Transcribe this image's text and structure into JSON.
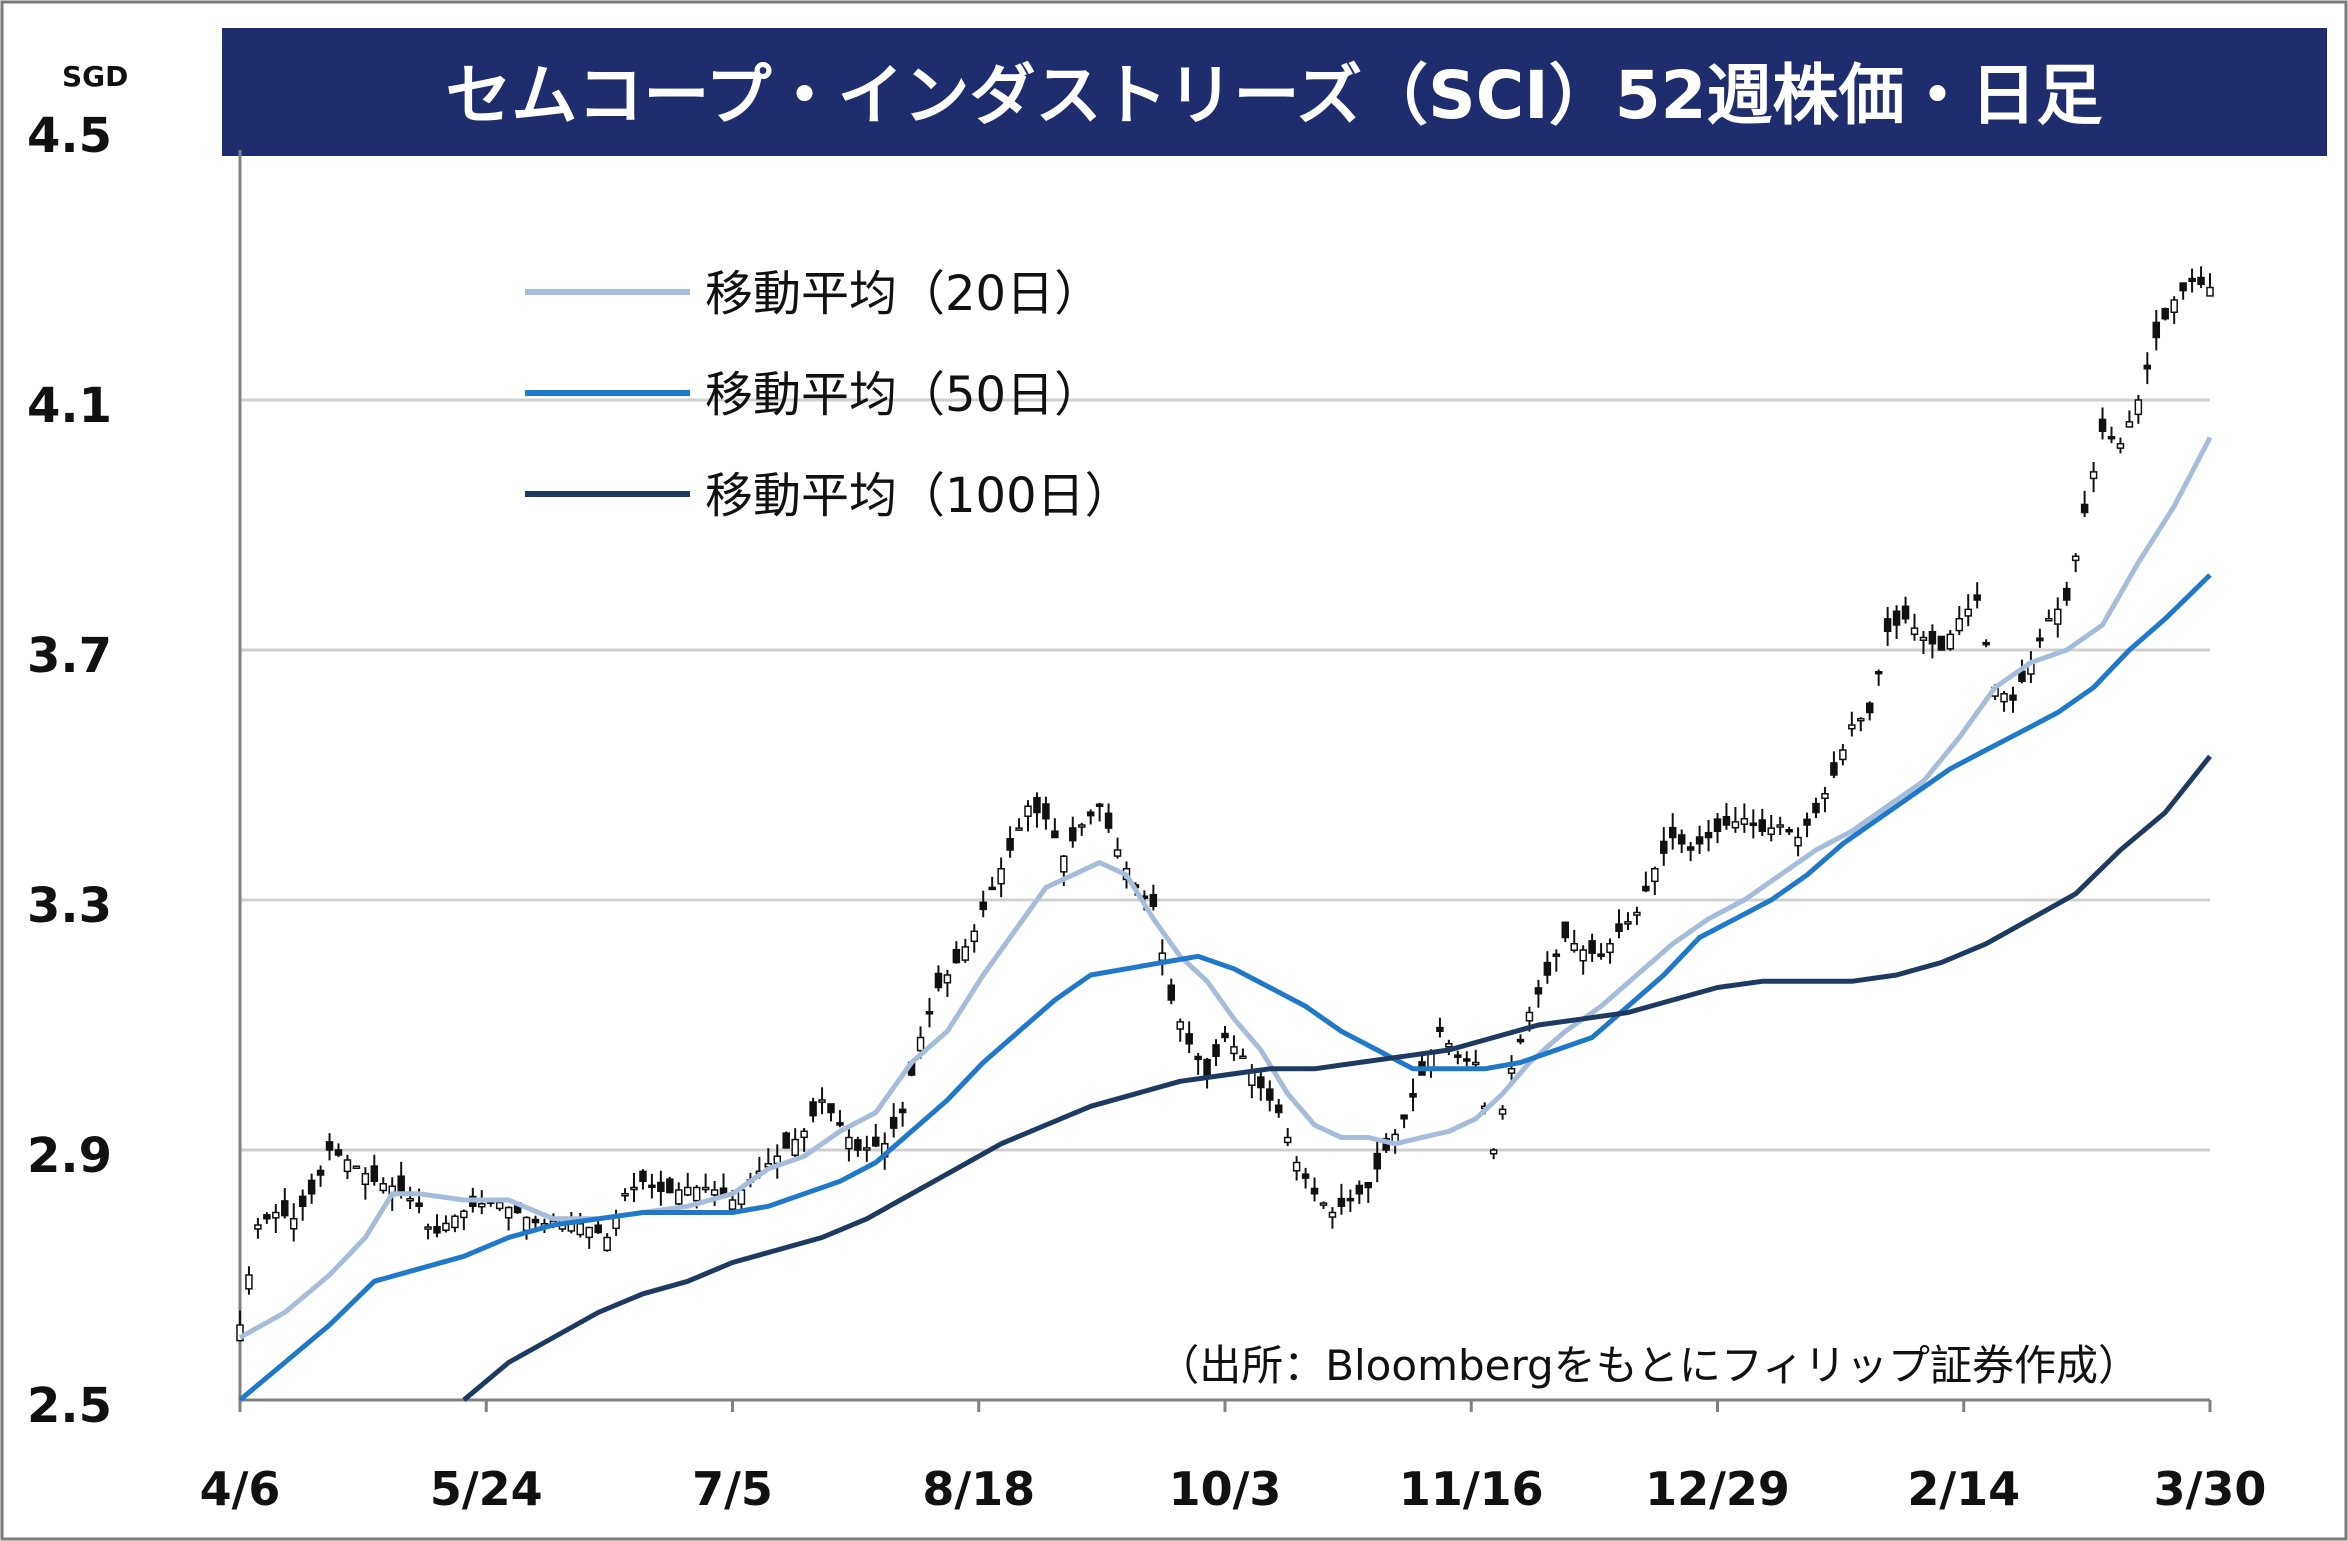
{
  "chart_data": {
    "type": "line",
    "title": "セムコープ・インダストリーズ（SCI）52週株価・日足",
    "unit": "SGD",
    "source": "（出所：Bloombergをもとにフィリップ証券作成）",
    "ylim": [
      2.5,
      4.5
    ],
    "yticks": [
      "2.5",
      "2.9",
      "3.3",
      "3.7",
      "4.1",
      "4.5"
    ],
    "xticks": [
      "4/6",
      "5/24",
      "7/5",
      "8/18",
      "10/3",
      "11/16",
      "12/29",
      "2/14",
      "3/30"
    ],
    "grid": true,
    "legend_position": "top-left",
    "candles": {
      "points": [
        [
          0,
          2.62
        ],
        [
          4,
          2.78
        ],
        [
          8,
          2.8
        ],
        [
          12,
          2.79
        ],
        [
          17,
          2.84
        ],
        [
          20,
          2.9
        ],
        [
          25,
          2.88
        ],
        [
          30,
          2.85
        ],
        [
          35,
          2.84
        ],
        [
          40,
          2.81
        ],
        [
          43,
          2.76
        ],
        [
          47,
          2.79
        ],
        [
          52,
          2.81
        ],
        [
          57,
          2.82
        ],
        [
          62,
          2.8
        ],
        [
          67,
          2.78
        ],
        [
          72,
          2.79
        ],
        [
          77,
          2.78
        ],
        [
          82,
          2.76
        ],
        [
          86,
          2.83
        ],
        [
          90,
          2.85
        ],
        [
          95,
          2.83
        ],
        [
          100,
          2.84
        ],
        [
          105,
          2.84
        ],
        [
          110,
          2.82
        ],
        [
          115,
          2.86
        ],
        [
          120,
          2.89
        ],
        [
          126,
          2.93
        ],
        [
          130,
          2.98
        ],
        [
          134,
          2.94
        ],
        [
          138,
          2.9
        ],
        [
          144,
          2.91
        ],
        [
          148,
          2.96
        ],
        [
          152,
          3.08
        ],
        [
          156,
          3.16
        ],
        [
          160,
          3.2
        ],
        [
          164,
          3.25
        ],
        [
          168,
          3.32
        ],
        [
          172,
          3.38
        ],
        [
          176,
          3.45
        ],
        [
          180,
          3.43
        ],
        [
          184,
          3.37
        ],
        [
          188,
          3.42
        ],
        [
          192,
          3.45
        ],
        [
          196,
          3.38
        ],
        [
          200,
          3.32
        ],
        [
          204,
          3.29
        ],
        [
          208,
          3.14
        ],
        [
          212,
          3.07
        ],
        [
          216,
          3.02
        ],
        [
          220,
          3.08
        ],
        [
          224,
          3.05
        ],
        [
          228,
          3.0
        ],
        [
          232,
          2.96
        ],
        [
          236,
          2.88
        ],
        [
          240,
          2.83
        ],
        [
          244,
          2.8
        ],
        [
          248,
          2.82
        ],
        [
          252,
          2.84
        ],
        [
          256,
          2.9
        ],
        [
          260,
          2.95
        ],
        [
          264,
          3.02
        ],
        [
          268,
          3.09
        ],
        [
          272,
          3.05
        ],
        [
          276,
          3.04
        ],
        [
          280,
          2.9
        ],
        [
          284,
          3.03
        ],
        [
          288,
          3.12
        ],
        [
          292,
          3.18
        ],
        [
          296,
          3.24
        ],
        [
          300,
          3.22
        ],
        [
          304,
          3.21
        ],
        [
          308,
          3.25
        ],
        [
          312,
          3.28
        ],
        [
          316,
          3.35
        ],
        [
          320,
          3.4
        ],
        [
          324,
          3.38
        ],
        [
          328,
          3.4
        ],
        [
          332,
          3.42
        ],
        [
          336,
          3.43
        ],
        [
          340,
          3.41
        ],
        [
          344,
          3.42
        ],
        [
          348,
          3.4
        ],
        [
          352,
          3.44
        ],
        [
          356,
          3.5
        ],
        [
          360,
          3.58
        ],
        [
          364,
          3.6
        ],
        [
          368,
          3.73
        ],
        [
          372,
          3.75
        ],
        [
          376,
          3.72
        ],
        [
          380,
          3.7
        ],
        [
          384,
          3.75
        ],
        [
          388,
          3.78
        ],
        [
          392,
          3.64
        ],
        [
          396,
          3.62
        ],
        [
          400,
          3.68
        ],
        [
          404,
          3.75
        ],
        [
          408,
          3.78
        ],
        [
          412,
          3.92
        ],
        [
          416,
          4.05
        ],
        [
          420,
          4.03
        ],
        [
          424,
          4.1
        ],
        [
          428,
          4.2
        ],
        [
          432,
          4.26
        ],
        [
          436,
          4.29
        ],
        [
          440,
          4.28
        ]
      ]
    },
    "series": [
      {
        "name": "移動平均（20日）",
        "color": "#a6bcdb",
        "values": [
          [
            0,
            2.6
          ],
          [
            10,
            2.64
          ],
          [
            20,
            2.7
          ],
          [
            28,
            2.76
          ],
          [
            34,
            2.83
          ],
          [
            40,
            2.83
          ],
          [
            50,
            2.82
          ],
          [
            60,
            2.82
          ],
          [
            70,
            2.79
          ],
          [
            80,
            2.79
          ],
          [
            90,
            2.8
          ],
          [
            100,
            2.81
          ],
          [
            110,
            2.83
          ],
          [
            118,
            2.87
          ],
          [
            126,
            2.89
          ],
          [
            134,
            2.93
          ],
          [
            142,
            2.96
          ],
          [
            150,
            3.04
          ],
          [
            158,
            3.09
          ],
          [
            166,
            3.18
          ],
          [
            174,
            3.26
          ],
          [
            180,
            3.32
          ],
          [
            186,
            3.34
          ],
          [
            192,
            3.36
          ],
          [
            198,
            3.34
          ],
          [
            204,
            3.27
          ],
          [
            210,
            3.21
          ],
          [
            216,
            3.17
          ],
          [
            222,
            3.11
          ],
          [
            228,
            3.06
          ],
          [
            234,
            2.99
          ],
          [
            240,
            2.94
          ],
          [
            246,
            2.92
          ],
          [
            252,
            2.92
          ],
          [
            258,
            2.91
          ],
          [
            264,
            2.92
          ],
          [
            270,
            2.93
          ],
          [
            276,
            2.95
          ],
          [
            282,
            2.99
          ],
          [
            288,
            3.04
          ],
          [
            296,
            3.09
          ],
          [
            304,
            3.13
          ],
          [
            312,
            3.18
          ],
          [
            320,
            3.23
          ],
          [
            328,
            3.27
          ],
          [
            336,
            3.3
          ],
          [
            344,
            3.34
          ],
          [
            352,
            3.38
          ],
          [
            360,
            3.41
          ],
          [
            368,
            3.45
          ],
          [
            376,
            3.49
          ],
          [
            384,
            3.56
          ],
          [
            392,
            3.64
          ],
          [
            400,
            3.68
          ],
          [
            408,
            3.7
          ],
          [
            416,
            3.74
          ],
          [
            424,
            3.84
          ],
          [
            432,
            3.93
          ],
          [
            440,
            4.04
          ]
        ]
      },
      {
        "name": "移動平均（50日）",
        "color": "#1f78c8",
        "values": [
          [
            0,
            2.5
          ],
          [
            10,
            2.56
          ],
          [
            20,
            2.62
          ],
          [
            30,
            2.69
          ],
          [
            40,
            2.71
          ],
          [
            50,
            2.73
          ],
          [
            60,
            2.76
          ],
          [
            70,
            2.78
          ],
          [
            80,
            2.79
          ],
          [
            90,
            2.8
          ],
          [
            100,
            2.8
          ],
          [
            110,
            2.8
          ],
          [
            118,
            2.81
          ],
          [
            126,
            2.83
          ],
          [
            134,
            2.85
          ],
          [
            142,
            2.88
          ],
          [
            150,
            2.93
          ],
          [
            158,
            2.98
          ],
          [
            166,
            3.04
          ],
          [
            174,
            3.09
          ],
          [
            182,
            3.14
          ],
          [
            190,
            3.18
          ],
          [
            198,
            3.19
          ],
          [
            206,
            3.2
          ],
          [
            214,
            3.21
          ],
          [
            222,
            3.19
          ],
          [
            230,
            3.16
          ],
          [
            238,
            3.13
          ],
          [
            246,
            3.09
          ],
          [
            254,
            3.06
          ],
          [
            262,
            3.03
          ],
          [
            270,
            3.03
          ],
          [
            278,
            3.03
          ],
          [
            286,
            3.04
          ],
          [
            294,
            3.06
          ],
          [
            302,
            3.08
          ],
          [
            310,
            3.13
          ],
          [
            318,
            3.18
          ],
          [
            326,
            3.24
          ],
          [
            334,
            3.27
          ],
          [
            342,
            3.3
          ],
          [
            350,
            3.34
          ],
          [
            358,
            3.39
          ],
          [
            366,
            3.43
          ],
          [
            374,
            3.47
          ],
          [
            382,
            3.51
          ],
          [
            390,
            3.54
          ],
          [
            398,
            3.57
          ],
          [
            406,
            3.6
          ],
          [
            414,
            3.64
          ],
          [
            422,
            3.7
          ],
          [
            430,
            3.75
          ],
          [
            440,
            3.82
          ]
        ]
      },
      {
        "name": "移動平均（100日）",
        "color": "#1f3a60",
        "values": [
          [
            50,
            2.5
          ],
          [
            60,
            2.56
          ],
          [
            70,
            2.6
          ],
          [
            80,
            2.64
          ],
          [
            90,
            2.67
          ],
          [
            100,
            2.69
          ],
          [
            110,
            2.72
          ],
          [
            120,
            2.74
          ],
          [
            130,
            2.76
          ],
          [
            140,
            2.79
          ],
          [
            150,
            2.83
          ],
          [
            160,
            2.87
          ],
          [
            170,
            2.91
          ],
          [
            180,
            2.94
          ],
          [
            190,
            2.97
          ],
          [
            200,
            2.99
          ],
          [
            210,
            3.01
          ],
          [
            220,
            3.02
          ],
          [
            230,
            3.03
          ],
          [
            240,
            3.03
          ],
          [
            250,
            3.04
          ],
          [
            260,
            3.05
          ],
          [
            270,
            3.06
          ],
          [
            280,
            3.08
          ],
          [
            290,
            3.1
          ],
          [
            300,
            3.11
          ],
          [
            310,
            3.12
          ],
          [
            320,
            3.14
          ],
          [
            330,
            3.16
          ],
          [
            340,
            3.17
          ],
          [
            350,
            3.17
          ],
          [
            360,
            3.17
          ],
          [
            370,
            3.18
          ],
          [
            380,
            3.2
          ],
          [
            390,
            3.23
          ],
          [
            400,
            3.27
          ],
          [
            410,
            3.31
          ],
          [
            420,
            3.38
          ],
          [
            430,
            3.44
          ],
          [
            440,
            3.53
          ]
        ]
      }
    ]
  }
}
